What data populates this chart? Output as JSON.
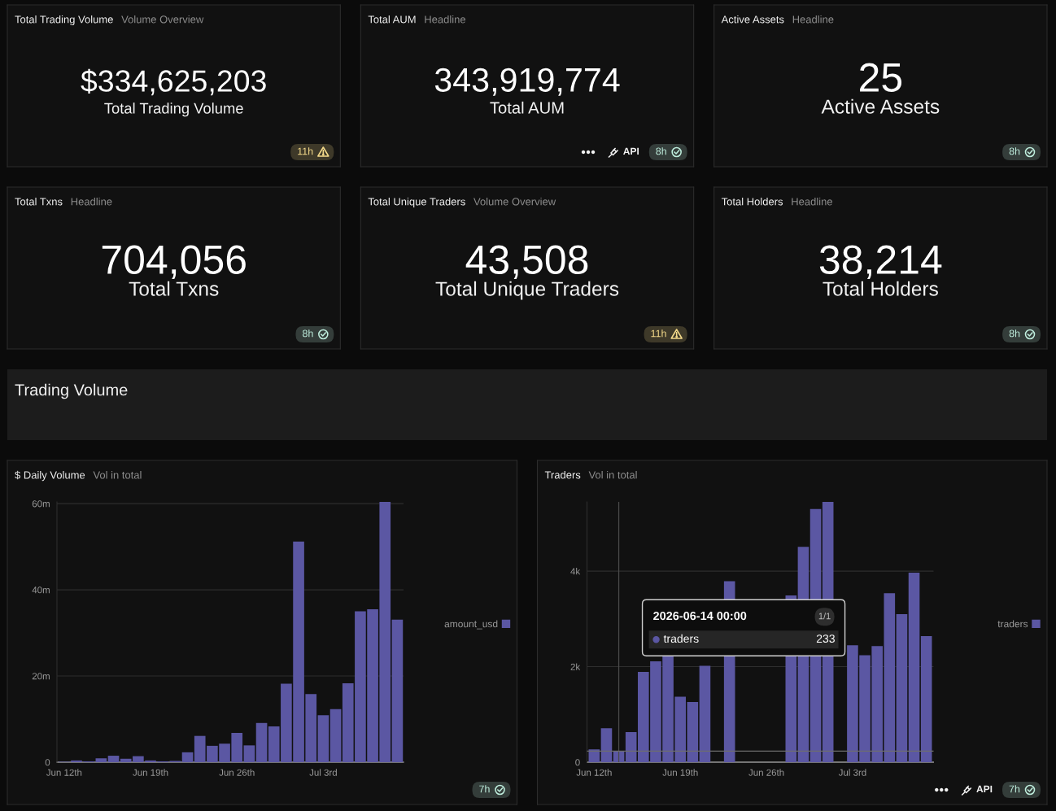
{
  "chart_data": [
    {
      "type": "other",
      "title": "Total Trading Volume",
      "subtitle": "Volume Overview",
      "annotations": [
        "$334,625,203",
        "Total Trading Volume",
        "11h"
      ],
      "color": "#f3d98a"
    },
    {
      "type": "other",
      "title": "Total AUM",
      "subtitle": "Headline",
      "annotations": [
        "343,919,774",
        "Total AUM",
        "API",
        "8h"
      ],
      "color": "#bfeedd"
    },
    {
      "type": "other",
      "title": "Active Assets",
      "subtitle": "Headline",
      "annotations": [
        "25",
        "Active Assets",
        "8h"
      ],
      "color": "#bfeedd"
    },
    {
      "type": "other",
      "title": "Total Txns",
      "subtitle": "Headline",
      "annotations": [
        "704,056",
        "Total Txns",
        "8h"
      ],
      "color": "#bfeedd"
    },
    {
      "type": "other",
      "title": "Total Unique Traders",
      "subtitle": "Volume Overview",
      "annotations": [
        "43,508",
        "Total Unique Traders",
        "11h"
      ],
      "color": "#f3d98a"
    },
    {
      "type": "other",
      "title": "Total Holders",
      "subtitle": "Headline",
      "annotations": [
        "38,214",
        "Total Holders",
        "8h"
      ],
      "color": "#bfeedd"
    },
    {
      "type": "other",
      "title": "Trading Volume"
    },
    {
      "type": "bar",
      "title": "$ Daily Volume",
      "subtitle": "Vol in total",
      "x": [
        "2026-06-12",
        "2026-06-13",
        "2026-06-14",
        "2026-06-15",
        "2026-06-16",
        "2026-06-17",
        "2026-06-18",
        "2026-06-19",
        "2026-06-20",
        "2026-06-21",
        "2026-06-22",
        "2026-06-23",
        "2026-06-24",
        "2026-06-25",
        "2026-06-26",
        "2026-06-27",
        "2026-06-28",
        "2026-06-29",
        "2026-06-30",
        "2026-07-01",
        "2026-07-02",
        "2026-07-03",
        "2026-07-04",
        "2026-07-05",
        "2026-07-06",
        "2026-07-07",
        "2026-07-08",
        "2026-07-09"
      ],
      "series": [
        {
          "name": "amount_usd",
          "color": "#5b57a3",
          "values": [
            100000,
            400000,
            200000,
            900000,
            1500000,
            800000,
            1400000,
            400000,
            200000,
            300000,
            2300000,
            6100000,
            3800000,
            4300000,
            6800000,
            3900000,
            9100000,
            8300000,
            18200000,
            51200000,
            15800000,
            10900000,
            12300000,
            18300000,
            35000000,
            35500000,
            60400000,
            33100000
          ]
        }
      ],
      "xlim": [
        "2026-06-11T10:00",
        "2026-07-09T12:00"
      ],
      "xticks": [
        {
          "value": "2026-06-12",
          "label": "Jun 12th"
        },
        {
          "value": "2026-06-19",
          "label": "Jun 19th"
        },
        {
          "value": "2026-06-26",
          "label": "Jun 26th"
        },
        {
          "value": "2026-07-03",
          "label": "Jul 3rd"
        }
      ],
      "ylim": [
        0,
        60400000
      ],
      "yticks": [
        0,
        {
          "value": 20000000,
          "label": "20m"
        },
        {
          "value": 40000000,
          "label": "40m"
        },
        {
          "value": 60000000,
          "label": "60m"
        }
      ],
      "grid": "y",
      "legend": "right",
      "annotations": [
        "7h"
      ]
    },
    {
      "type": "bar",
      "title": "Traders",
      "subtitle": "Vol in total",
      "x": [
        "2026-06-12",
        "2026-06-13",
        "2026-06-14",
        "2026-06-15",
        "2026-06-16",
        "2026-06-17",
        "2026-06-18",
        "2026-06-19",
        "2026-06-20",
        "2026-06-21",
        "2026-06-22",
        "2026-06-23",
        "2026-06-24",
        "2026-06-25",
        "2026-06-26",
        "2026-06-27",
        "2026-06-28",
        "2026-06-29",
        "2026-06-30",
        "2026-07-01",
        "2026-07-02",
        "2026-07-03",
        "2026-07-04",
        "2026-07-05",
        "2026-07-06",
        "2026-07-07",
        "2026-07-08",
        "2026-07-09"
      ],
      "series": [
        {
          "name": "traders",
          "color": "#5b57a3",
          "values": [
            270,
            710,
            233,
            630,
            1890,
            2110,
            2220,
            1370,
            1260,
            2020,
            null,
            3790,
            null,
            null,
            null,
            null,
            3490,
            4510,
            5300,
            5450,
            null,
            2450,
            2240,
            2430,
            3540,
            3100,
            3970,
            2640
          ]
        }
      ],
      "xlim": [
        "2026-06-11T10:00",
        "2026-07-09T14:00"
      ],
      "xticks": [
        {
          "value": "2026-06-12",
          "label": "Jun 12th"
        },
        {
          "value": "2026-06-19",
          "label": "Jun 19th"
        },
        {
          "value": "2026-06-26",
          "label": "Jun 26th"
        },
        {
          "value": "2026-07-03",
          "label": "Jul 3rd"
        }
      ],
      "ylim": [
        0,
        5450
      ],
      "yticks": [
        0,
        {
          "value": 2000,
          "label": "2k"
        },
        {
          "value": 4000,
          "label": "4k"
        }
      ],
      "grid": "y",
      "legend": "right",
      "ref_lines": [
        {
          "axis": "x",
          "value": "2026-06-14",
          "color": "#4a4a4a"
        },
        {
          "axis": "y",
          "value": 233,
          "color": "#6e6e6e"
        }
      ],
      "annotations": [
        "2026-06-14 00:00",
        "1/1",
        "traders",
        "233",
        "API",
        "7h"
      ]
    }
  ]
}
